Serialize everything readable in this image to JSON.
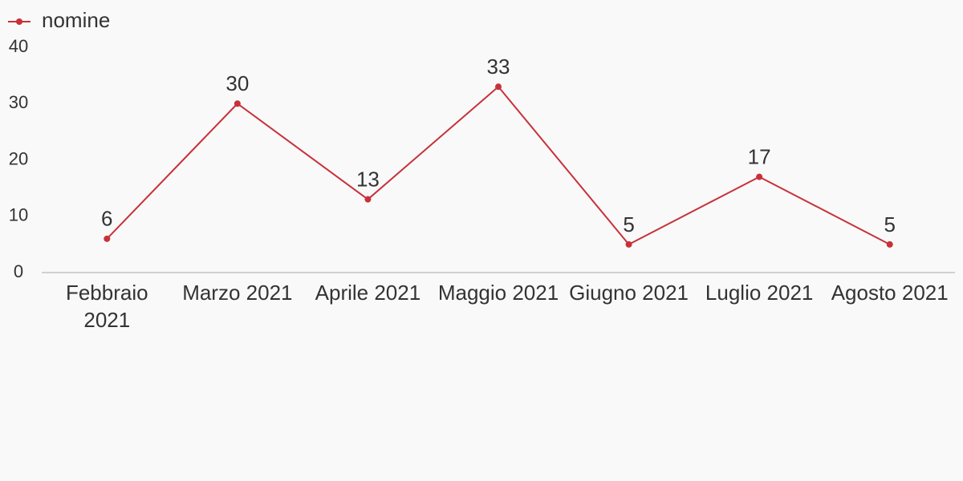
{
  "chart_data": {
    "type": "line",
    "categories": [
      "Febbraio 2021",
      "Marzo 2021",
      "Aprile 2021",
      "Maggio 2021",
      "Giugno 2021",
      "Luglio 2021",
      "Agosto 2021"
    ],
    "series": [
      {
        "name": "nomine",
        "color": "#c8313a",
        "values": [
          6,
          30,
          13,
          33,
          5,
          17,
          5
        ]
      }
    ],
    "ylim": [
      0,
      40
    ],
    "yticks": [
      0,
      10,
      20,
      30,
      40
    ],
    "grid": false,
    "legend": "top-left",
    "data_labels": true
  }
}
